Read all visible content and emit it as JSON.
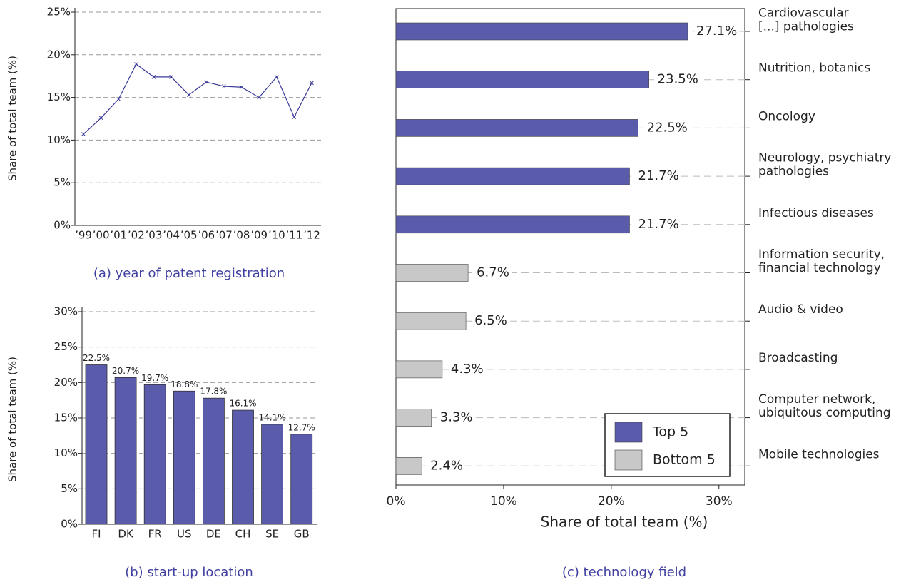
{
  "chart_data": [
    {
      "type": "line",
      "caption": "(a) year of patent registration",
      "ylabel": "Share of total team (%)",
      "categories": [
        "’99",
        "’00",
        "’01",
        "’02",
        "’03",
        "’04",
        "’05",
        "’06",
        "’07",
        "’08",
        "’09",
        "’10",
        "’11",
        "’12"
      ],
      "values": [
        10.7,
        12.6,
        14.8,
        18.9,
        17.4,
        17.4,
        15.3,
        16.8,
        16.3,
        16.2,
        15.0,
        17.4,
        12.7,
        16.7
      ],
      "color": "#3a3a9a",
      "ylim": [
        0,
        25
      ],
      "yticks": [
        {
          "value": 0,
          "label": "0%"
        },
        {
          "value": 5,
          "label": "5%"
        },
        {
          "value": 10,
          "label": "10%"
        },
        {
          "value": 15,
          "label": "15%"
        },
        {
          "value": 20,
          "label": "20%"
        },
        {
          "value": 25,
          "label": "25%"
        }
      ],
      "grid": true
    },
    {
      "type": "bar",
      "caption": "(b) start-up location",
      "ylabel": "Share of total team (%)",
      "categories": [
        "FI",
        "DK",
        "FR",
        "US",
        "DE",
        "CH",
        "SE",
        "GB"
      ],
      "values": [
        22.5,
        20.7,
        19.7,
        18.8,
        17.8,
        16.1,
        14.1,
        12.7
      ],
      "value_labels": [
        "22.5%",
        "20.7%",
        "19.7%",
        "18.8%",
        "17.8%",
        "16.1%",
        "14.1%",
        "12.7%"
      ],
      "color": "#5b5bab",
      "ylim": [
        0,
        30
      ],
      "yticks": [
        {
          "value": 0,
          "label": "0%"
        },
        {
          "value": 5,
          "label": "5%"
        },
        {
          "value": 10,
          "label": "10%"
        },
        {
          "value": 15,
          "label": "15%"
        },
        {
          "value": 20,
          "label": "20%"
        },
        {
          "value": 25,
          "label": "25%"
        },
        {
          "value": 30,
          "label": "30%"
        }
      ],
      "grid": true
    },
    {
      "type": "hbar",
      "caption": "(c) technology field",
      "xlabel": "Share of total team (%)",
      "categories": [
        "Cardiovascular\n[...] pathologies",
        "Nutrition, botanics",
        "Oncology",
        "Neurology, psychiatry\npathologies",
        "Infectious diseases",
        "Information security,\nfinancial technology",
        "Audio & video",
        "Broadcasting",
        "Computer network,\nubiquitous computing",
        "Mobile technologies"
      ],
      "series": [
        {
          "name": "Top 5",
          "color": "#5b5bab",
          "values": [
            27.1,
            23.5,
            22.5,
            21.7,
            21.7,
            null,
            null,
            null,
            null,
            null
          ],
          "value_labels": [
            "27.1%",
            "23.5%",
            "22.5%",
            "21.7%",
            "21.7%",
            null,
            null,
            null,
            null,
            null
          ]
        },
        {
          "name": "Bottom 5",
          "color": "#c8c8c8",
          "values": [
            null,
            null,
            null,
            null,
            null,
            6.7,
            6.5,
            4.3,
            3.3,
            2.4
          ],
          "value_labels": [
            null,
            null,
            null,
            null,
            null,
            "6.7%",
            "6.5%",
            "4.3%",
            "3.3%",
            "2.4%"
          ]
        }
      ],
      "xlim": [
        0,
        32.4
      ],
      "xticks": [
        {
          "value": 0,
          "label": "0%"
        },
        {
          "value": 10,
          "label": "10%"
        },
        {
          "value": 20,
          "label": "20%"
        },
        {
          "value": 30,
          "label": "30%"
        }
      ],
      "legend": "lower right",
      "grid": true
    }
  ]
}
